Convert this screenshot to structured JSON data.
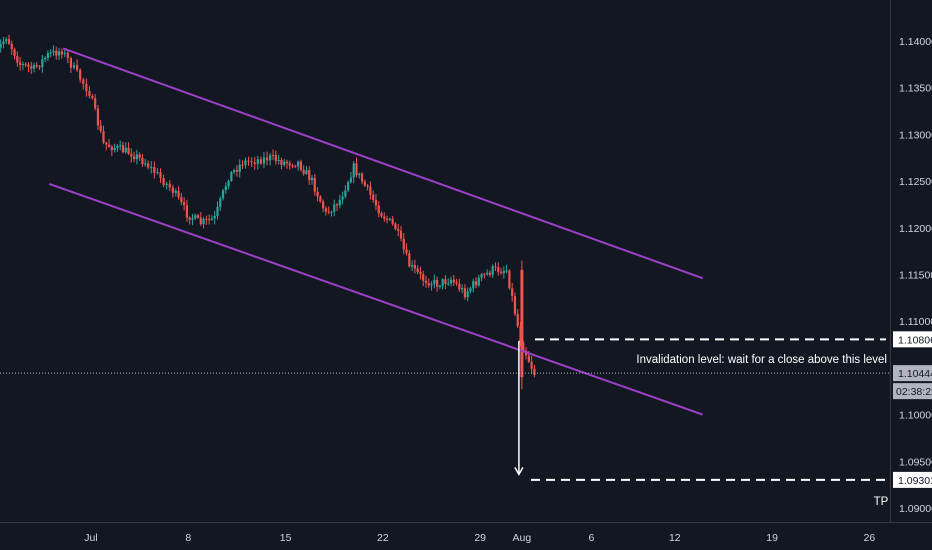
{
  "chart_data": {
    "type": "candlestick",
    "instrument_colors": {
      "background": "#131722",
      "up": "#26a69a",
      "down": "#ef5350",
      "channel": "#9c40c9",
      "annotation": "#ffffff",
      "axis_text": "#d1d4dc"
    },
    "y_axis": {
      "ylim": [
        1.0878,
        1.1445
      ],
      "ticks": [
        "1.14000",
        "1.13500",
        "1.13000",
        "1.12500",
        "1.12000",
        "1.11500",
        "1.11000",
        "1.10000",
        "1.09500",
        "1.09000"
      ]
    },
    "x_axis": {
      "ticks": [
        "Jul",
        "8",
        "15",
        "22",
        "29",
        "Aug",
        "6",
        "12",
        "19",
        "26"
      ]
    },
    "price_tags": {
      "invalidation": "1.10806",
      "last": "1.10444",
      "countdown": "02:38:22",
      "target": "1.09301"
    },
    "annotations": {
      "invalidation_text": "Invalidation level: wait for a close above this level",
      "tp_text": "TP"
    },
    "channel": {
      "upper": [
        {
          "x": "2019-06-29",
          "y": 1.1392
        },
        {
          "x": "2019-08-14",
          "y": 1.1146
        }
      ],
      "lower": [
        {
          "x": "2019-06-28",
          "y": 1.1247
        },
        {
          "x": "2019-08-14",
          "y": 1.1
        }
      ]
    },
    "levels": {
      "invalidation": 1.10806,
      "target": 1.09301,
      "last": 1.10444
    },
    "arrow": {
      "x": "2019-08-01",
      "from": 1.1079,
      "to": 1.0936
    },
    "candles_close_path": [
      {
        "t": "2019-06-24",
        "c": 1.138
      },
      {
        "t": "2019-06-25",
        "c": 1.1405
      },
      {
        "t": "2019-06-26",
        "c": 1.1375
      },
      {
        "t": "2019-06-27",
        "c": 1.137
      },
      {
        "t": "2019-06-28",
        "c": 1.1385
      },
      {
        "t": "2019-06-29",
        "c": 1.139
      },
      {
        "t": "2019-07-01",
        "c": 1.1345
      },
      {
        "t": "2019-07-02",
        "c": 1.129
      },
      {
        "t": "2019-07-03",
        "c": 1.1285
      },
      {
        "t": "2019-07-04",
        "c": 1.128
      },
      {
        "t": "2019-07-05",
        "c": 1.127
      },
      {
        "t": "2019-07-07",
        "c": 1.124
      },
      {
        "t": "2019-07-08",
        "c": 1.1215
      },
      {
        "t": "2019-07-09",
        "c": 1.1205
      },
      {
        "t": "2019-07-10",
        "c": 1.121
      },
      {
        "t": "2019-07-11",
        "c": 1.1255
      },
      {
        "t": "2019-07-12",
        "c": 1.127
      },
      {
        "t": "2019-07-14",
        "c": 1.1275
      },
      {
        "t": "2019-07-15",
        "c": 1.127
      },
      {
        "t": "2019-07-16",
        "c": 1.127
      },
      {
        "t": "2019-07-17",
        "c": 1.125
      },
      {
        "t": "2019-07-18",
        "c": 1.1215
      },
      {
        "t": "2019-07-19",
        "c": 1.123
      },
      {
        "t": "2019-07-20",
        "c": 1.1265
      },
      {
        "t": "2019-07-21",
        "c": 1.124
      },
      {
        "t": "2019-07-22",
        "c": 1.1215
      },
      {
        "t": "2019-07-23",
        "c": 1.12
      },
      {
        "t": "2019-07-24",
        "c": 1.116
      },
      {
        "t": "2019-07-25",
        "c": 1.1145
      },
      {
        "t": "2019-07-26",
        "c": 1.114
      },
      {
        "t": "2019-07-27",
        "c": 1.1145
      },
      {
        "t": "2019-07-28",
        "c": 1.113
      },
      {
        "t": "2019-07-29",
        "c": 1.1145
      },
      {
        "t": "2019-07-30",
        "c": 1.1155
      },
      {
        "t": "2019-07-31",
        "c": 1.1155
      },
      {
        "t": "2019-08-01",
        "c": 1.108
      },
      {
        "t": "2019-08-02",
        "c": 1.1044
      }
    ]
  }
}
